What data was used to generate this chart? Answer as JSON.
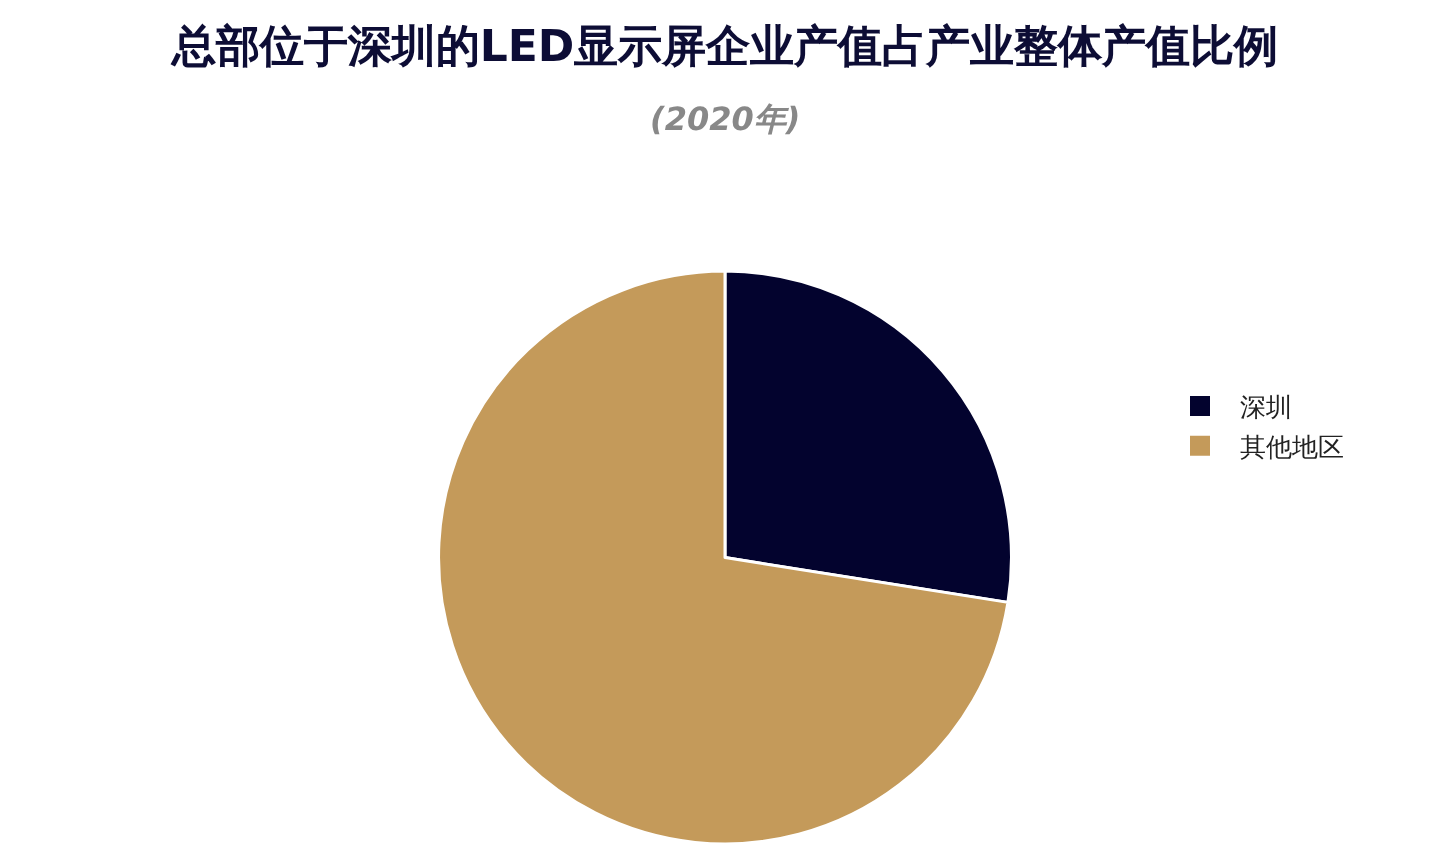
{
  "chart_data": {
    "type": "pie",
    "title": "总部位于深圳的LED显示屏企业产值占产业整体产值比例",
    "subtitle": "(2020年)",
    "categories": [
      "深圳",
      "其他地区"
    ],
    "values": [
      27.5,
      72.5
    ],
    "colors": [
      "#03032e",
      "#c49a5a"
    ],
    "legend": "right"
  }
}
